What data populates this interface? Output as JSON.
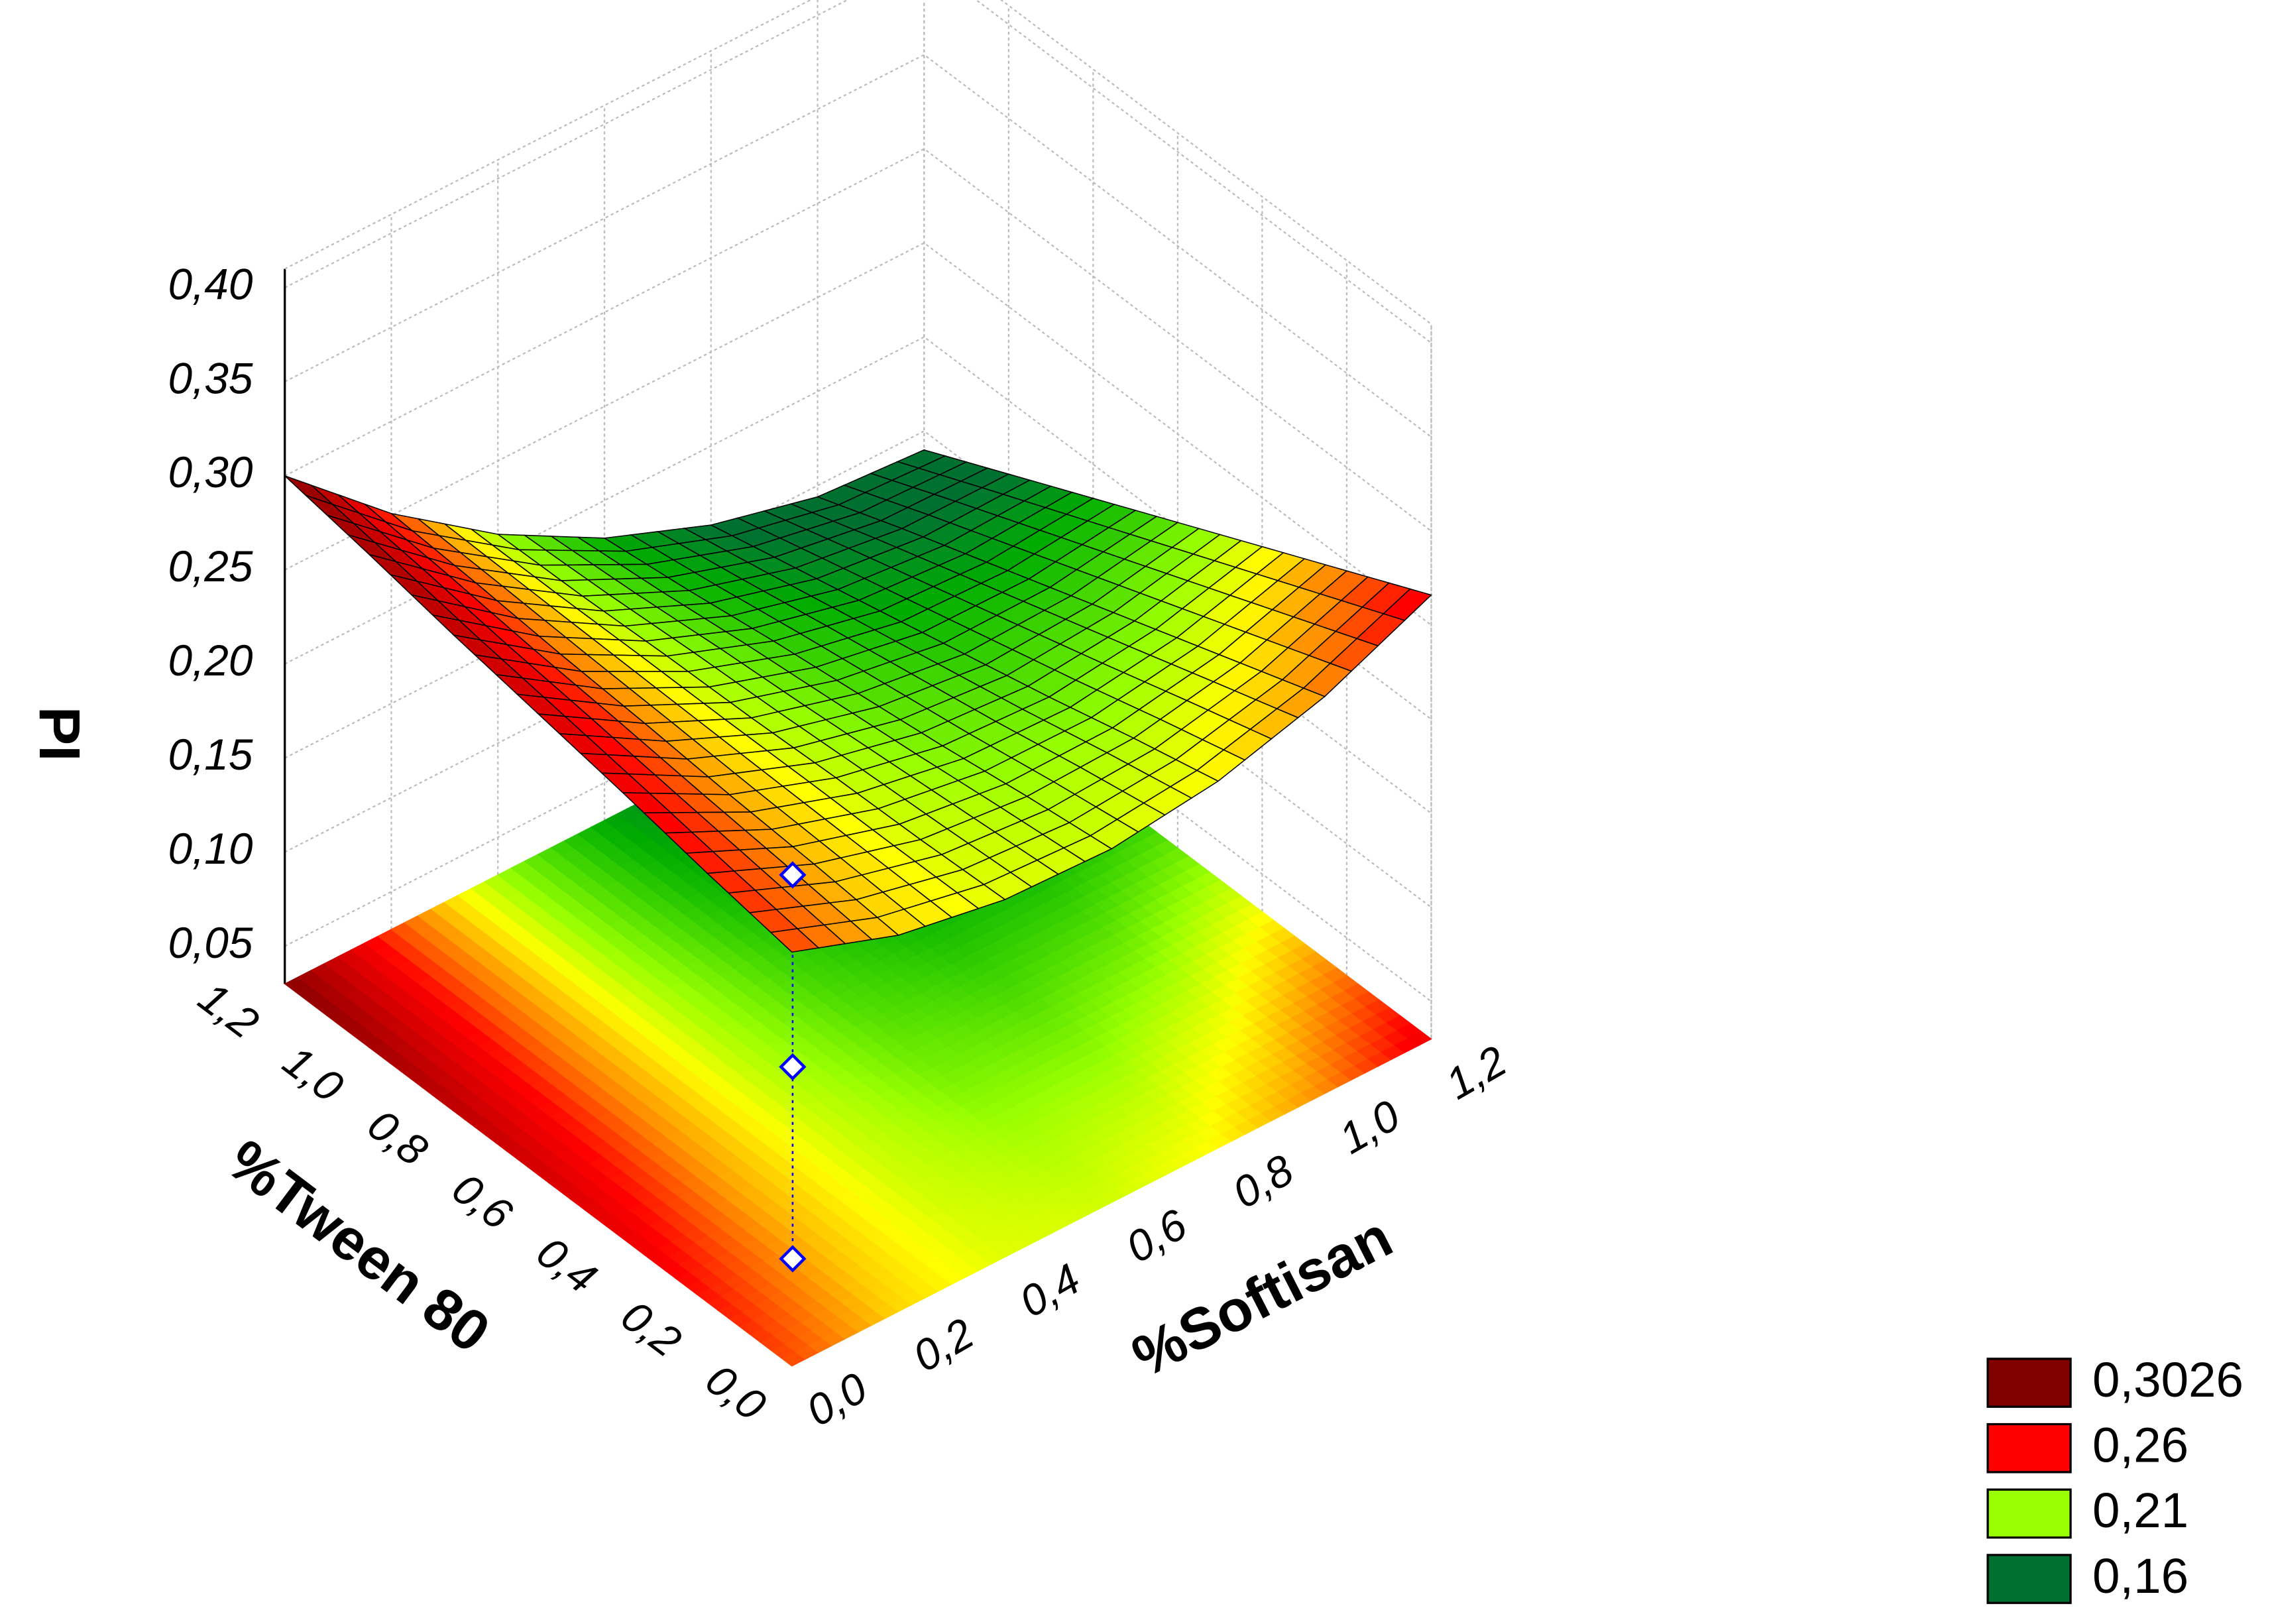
{
  "chart_data": {
    "type": "surface3d",
    "z_label": "PI",
    "x_label": "%Tween 80",
    "y_label": "%Softisan",
    "x": [
      0,
      0.2,
      0.4,
      0.6,
      0.8,
      1.0,
      1.2
    ],
    "y": [
      0,
      0.2,
      0.4,
      0.6,
      0.8,
      1.0,
      1.2
    ],
    "z": [
      [
        0.25,
        0.23,
        0.22,
        0.218,
        0.225,
        0.241,
        0.266
      ],
      [
        0.258,
        0.234,
        0.218,
        0.212,
        0.214,
        0.225,
        0.245
      ],
      [
        0.267,
        0.237,
        0.217,
        0.205,
        0.202,
        0.209,
        0.224
      ],
      [
        0.275,
        0.241,
        0.215,
        0.199,
        0.191,
        0.193,
        0.203
      ],
      [
        0.283,
        0.244,
        0.214,
        0.193,
        0.18,
        0.177,
        0.182
      ],
      [
        0.292,
        0.248,
        0.212,
        0.186,
        0.169,
        0.161,
        0.161
      ],
      [
        0.3,
        0.251,
        0.211,
        0.18,
        0.158,
        0.144,
        0.14
      ]
    ],
    "xlim": [
      0,
      1.2
    ],
    "ylim": [
      0,
      1.2
    ],
    "zlim": [
      0.03,
      0.41
    ],
    "xticks": [
      {
        "value": 0,
        "label": "0,0"
      },
      {
        "value": 0.2,
        "label": "0,2"
      },
      {
        "value": 0.4,
        "label": "0,4"
      },
      {
        "value": 0.6,
        "label": "0,6"
      },
      {
        "value": 0.8,
        "label": "0,8"
      },
      {
        "value": 1.0,
        "label": "1,0"
      },
      {
        "value": 1.2,
        "label": "1,2"
      }
    ],
    "yticks": [
      {
        "value": 0,
        "label": "0,0"
      },
      {
        "value": 0.2,
        "label": "0,2"
      },
      {
        "value": 0.4,
        "label": "0,4"
      },
      {
        "value": 0.6,
        "label": "0,6"
      },
      {
        "value": 0.8,
        "label": "0,8"
      },
      {
        "value": 1.0,
        "label": "1,0"
      },
      {
        "value": 1.2,
        "label": "1,2"
      }
    ],
    "zticks": [
      {
        "value": 0.05,
        "label": "0,05"
      },
      {
        "value": 0.1,
        "label": "0,10"
      },
      {
        "value": 0.15,
        "label": "0,15"
      },
      {
        "value": 0.2,
        "label": "0,20"
      },
      {
        "value": 0.25,
        "label": "0,25"
      },
      {
        "value": 0.3,
        "label": "0,30"
      },
      {
        "value": 0.35,
        "label": "0,35"
      },
      {
        "value": 0.4,
        "label": "0,40"
      }
    ],
    "levels": [
      {
        "value": 0.3026,
        "label": "0,3026",
        "color": "#800000"
      },
      {
        "value": 0.26,
        "label": "0,26",
        "color": "#ff0000"
      },
      {
        "value": 0.21,
        "label": "0,21",
        "color": "#99ff00"
      },
      {
        "value": 0.16,
        "label": "0,16",
        "color": "#007030"
      }
    ],
    "points": {
      "x": [
        0.2
      ],
      "y": [
        0.16
      ],
      "z": [
        0.234
      ],
      "color": "#0000ff"
    },
    "grid": true
  }
}
